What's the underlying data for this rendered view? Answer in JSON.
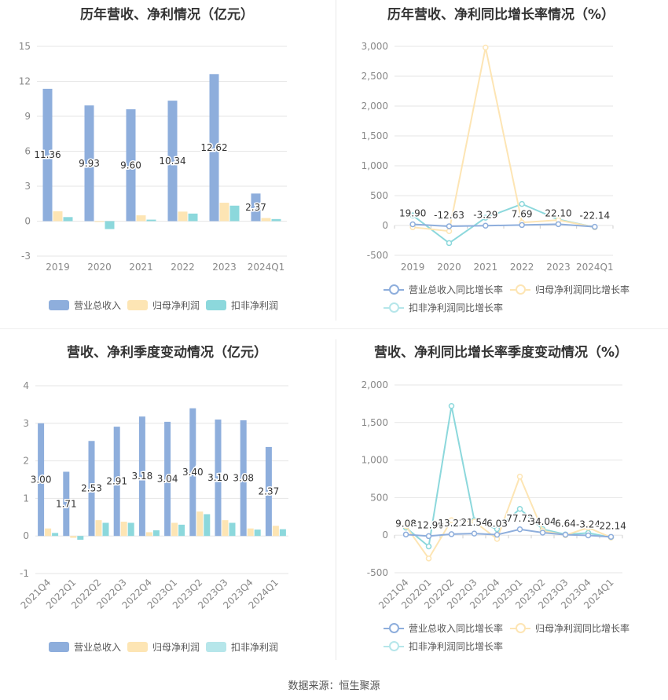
{
  "source": "数据来源：恒生聚源",
  "colors": {
    "revenue": "#8eaedc",
    "net_profit": "#fde5b4",
    "deducted_profit": "#8cd8dc",
    "grid": "#e6e6e6",
    "axis_text": "#888888"
  },
  "legend_labels": {
    "revenue": "营业总收入",
    "net_profit": "归母净利润",
    "deducted_profit": "扣非净利润",
    "revenue_growth": "营业总收入同比增长率",
    "net_profit_growth": "归母净利润同比增长率",
    "deducted_growth": "扣非净利润同比增长率"
  },
  "chart_data": [
    {
      "id": "annual-bar",
      "type": "bar",
      "title": "历年营收、净利情况（亿元）",
      "categories": [
        "2019",
        "2020",
        "2021",
        "2022",
        "2023",
        "2024Q1"
      ],
      "series": [
        {
          "name": "营业总收入",
          "values": [
            11.36,
            9.93,
            9.6,
            10.34,
            12.62,
            2.37
          ]
        },
        {
          "name": "归母净利润",
          "values": [
            0.85,
            -0.07,
            0.5,
            0.82,
            1.58,
            0.27
          ]
        },
        {
          "name": "扣非净利润",
          "values": [
            0.35,
            -0.68,
            0.13,
            0.65,
            1.33,
            0.18
          ]
        }
      ],
      "data_labels": [
        "11.36",
        "9.93",
        "9.60",
        "10.34",
        "12.62",
        "2.37"
      ],
      "yticks": [
        "-3",
        "0",
        "3",
        "6",
        "9",
        "12",
        "15"
      ],
      "ylim": [
        -3,
        15
      ],
      "grid": true
    },
    {
      "id": "annual-line",
      "type": "line",
      "title": "历年营收、净利同比增长率情况（%）",
      "categories": [
        "2019",
        "2020",
        "2021",
        "2022",
        "2023",
        "2024Q1"
      ],
      "series": [
        {
          "name": "营业总收入同比增长率",
          "values": [
            19.9,
            -12.63,
            -3.29,
            7.69,
            22.1,
            -22.14
          ]
        },
        {
          "name": "归母净利润同比增长率",
          "values": [
            -30,
            -95,
            2980,
            50,
            90,
            -30
          ]
        },
        {
          "name": "扣非净利润同比增长率",
          "values": [
            170,
            -295,
            130,
            360,
            100,
            -30
          ]
        }
      ],
      "data_labels": [
        "19.90",
        "-12.63",
        "-3.29",
        "7.69",
        "22.10",
        "-22.14"
      ],
      "yticks": [
        "-500",
        "0",
        "500",
        "1,000",
        "1,500",
        "2,000",
        "2,500",
        "3,000"
      ],
      "ylim": [
        -500,
        3000
      ],
      "grid": true
    },
    {
      "id": "quarter-bar",
      "type": "bar",
      "title": "营收、净利季度变动情况（亿元）",
      "categories": [
        "2021Q4",
        "2022Q1",
        "2022Q2",
        "2022Q3",
        "2022Q4",
        "2023Q1",
        "2023Q2",
        "2023Q3",
        "2023Q4",
        "2024Q1"
      ],
      "series": [
        {
          "name": "营业总收入",
          "values": [
            3.0,
            1.71,
            2.53,
            2.91,
            3.18,
            3.04,
            3.4,
            3.1,
            3.08,
            2.37
          ]
        },
        {
          "name": "归母净利润",
          "values": [
            0.2,
            -0.05,
            0.42,
            0.38,
            0.1,
            0.35,
            0.65,
            0.42,
            0.2,
            0.27
          ]
        },
        {
          "name": "扣非净利润",
          "values": [
            0.08,
            -0.1,
            0.35,
            0.35,
            0.15,
            0.3,
            0.58,
            0.35,
            0.17,
            0.18
          ]
        }
      ],
      "data_labels": [
        "3.00",
        "1.71",
        "2.53",
        "2.91",
        "3.18",
        "3.04",
        "3.40",
        "3.10",
        "3.08",
        "2.37"
      ],
      "yticks": [
        "-1",
        "0",
        "1",
        "2",
        "3",
        "4"
      ],
      "ylim": [
        -1,
        4
      ],
      "grid": true
    },
    {
      "id": "quarter-line",
      "type": "line",
      "title": "营收、净利同比增长率季度变动情况（%）",
      "categories": [
        "2021Q4",
        "2022Q1",
        "2022Q2",
        "2022Q3",
        "2022Q4",
        "2023Q1",
        "2023Q2",
        "2023Q3",
        "2023Q4",
        "2024Q1"
      ],
      "series": [
        {
          "name": "营业总收入同比增长率",
          "values": [
            9.08,
            -12.9,
            13.22,
            21.54,
            6.03,
            77.72,
            34.04,
            6.64,
            -3.24,
            -22.14
          ]
        },
        {
          "name": "归母净利润同比增长率",
          "values": [
            120,
            -310,
            200,
            180,
            -50,
            780,
            60,
            0,
            100,
            -30
          ]
        },
        {
          "name": "扣非净利润同比增长率",
          "values": [
            100,
            -150,
            1720,
            200,
            80,
            350,
            80,
            10,
            30,
            -30
          ]
        }
      ],
      "data_labels": [
        "9.08",
        "-12.90",
        "13.22",
        "21.54",
        "6.03",
        "77.72",
        "34.04",
        "6.64",
        "-3.24",
        "-22.14"
      ],
      "yticks": [
        "-500",
        "0",
        "500",
        "1,000",
        "1,500",
        "2,000"
      ],
      "ylim": [
        -500,
        2000
      ],
      "grid": true
    }
  ]
}
